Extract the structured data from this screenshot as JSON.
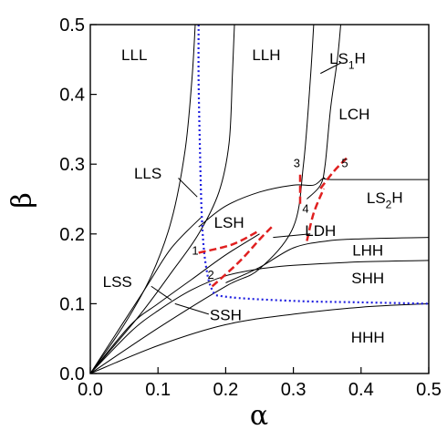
{
  "chart_data": {
    "type": "line",
    "xlabel": "α",
    "ylabel": "β",
    "xlim": [
      0.0,
      0.5
    ],
    "ylim": [
      0.0,
      0.5
    ],
    "x_ticks": [
      0.0,
      0.1,
      0.2,
      0.3,
      0.4,
      0.5
    ],
    "y_ticks": [
      0.0,
      0.1,
      0.2,
      0.3,
      0.4,
      0.5
    ],
    "x_tick_labels": [
      "0.0",
      "0.1",
      "0.2",
      "0.3",
      "0.4",
      "0.5"
    ],
    "y_tick_labels": [
      "0.0",
      "0.1",
      "0.2",
      "0.3",
      "0.4",
      "0.5"
    ],
    "grid": false,
    "boundaries": [
      {
        "id": "b1",
        "points": [
          [
            0.0,
            0.0
          ],
          [
            0.05,
            0.07
          ],
          [
            0.09,
            0.14
          ],
          [
            0.12,
            0.22
          ],
          [
            0.14,
            0.32
          ],
          [
            0.15,
            0.42
          ],
          [
            0.155,
            0.5
          ]
        ]
      },
      {
        "id": "b2",
        "points": [
          [
            0.0,
            0.0
          ],
          [
            0.07,
            0.08
          ],
          [
            0.12,
            0.145
          ],
          [
            0.16,
            0.2
          ],
          [
            0.19,
            0.26
          ],
          [
            0.205,
            0.33
          ],
          [
            0.21,
            0.43
          ],
          [
            0.213,
            0.5
          ]
        ]
      },
      {
        "id": "b3",
        "points": [
          [
            0.0,
            0.0
          ],
          [
            0.1,
            0.065
          ],
          [
            0.2,
            0.125
          ],
          [
            0.25,
            0.15
          ],
          [
            0.3,
            0.21
          ],
          [
            0.315,
            0.3
          ],
          [
            0.325,
            0.42
          ],
          [
            0.33,
            0.5
          ]
        ]
      },
      {
        "id": "b4",
        "points": [
          [
            0.32,
            0.25
          ],
          [
            0.34,
            0.27
          ],
          [
            0.347,
            0.3
          ],
          [
            0.355,
            0.38
          ],
          [
            0.365,
            0.45
          ],
          [
            0.37,
            0.5
          ]
        ]
      },
      {
        "id": "b5",
        "points": [
          [
            0.16,
            0.21
          ],
          [
            0.2,
            0.24
          ],
          [
            0.25,
            0.26
          ],
          [
            0.3,
            0.27
          ],
          [
            0.33,
            0.27
          ],
          [
            0.345,
            0.28
          ],
          [
            0.36,
            0.278
          ],
          [
            0.5,
            0.278
          ]
        ]
      },
      {
        "id": "b6",
        "points": [
          [
            0.2,
            0.13
          ],
          [
            0.25,
            0.152
          ],
          [
            0.3,
            0.18
          ],
          [
            0.35,
            0.19
          ],
          [
            0.4,
            0.193
          ],
          [
            0.5,
            0.195
          ]
        ]
      },
      {
        "id": "b7",
        "points": [
          [
            0.25,
            0.15
          ],
          [
            0.3,
            0.155
          ],
          [
            0.4,
            0.16
          ],
          [
            0.5,
            0.162
          ]
        ]
      },
      {
        "id": "b8",
        "points": [
          [
            0.0,
            0.0
          ],
          [
            0.1,
            0.04
          ],
          [
            0.2,
            0.07
          ],
          [
            0.3,
            0.085
          ],
          [
            0.4,
            0.095
          ],
          [
            0.5,
            0.1
          ]
        ]
      },
      {
        "id": "b9",
        "points": [
          [
            0.0,
            0.0
          ],
          [
            0.06,
            0.06
          ],
          [
            0.1,
            0.09
          ],
          [
            0.15,
            0.12
          ],
          [
            0.2,
            0.14
          ],
          [
            0.25,
            0.15
          ]
        ]
      },
      {
        "id": "b10",
        "points": [
          [
            0.0,
            0.0
          ],
          [
            0.06,
            0.07
          ],
          [
            0.1,
            0.1
          ],
          [
            0.15,
            0.135
          ],
          [
            0.2,
            0.17
          ],
          [
            0.25,
            0.2
          ]
        ]
      },
      {
        "id": "b11",
        "points": [
          [
            0.0,
            0.0
          ],
          [
            0.08,
            0.12
          ],
          [
            0.12,
            0.18
          ],
          [
            0.165,
            0.225
          ]
        ]
      }
    ],
    "dotted_curve": {
      "points": [
        [
          0.16,
          0.5
        ],
        [
          0.16,
          0.42
        ],
        [
          0.162,
          0.32
        ],
        [
          0.165,
          0.22
        ],
        [
          0.17,
          0.16
        ],
        [
          0.18,
          0.12
        ],
        [
          0.2,
          0.11
        ],
        [
          0.3,
          0.104
        ],
        [
          0.4,
          0.102
        ],
        [
          0.5,
          0.1
        ]
      ]
    },
    "dashed_paths": [
      {
        "points": [
          [
            0.16,
            0.173
          ],
          [
            0.21,
            0.185
          ],
          [
            0.25,
            0.205
          ]
        ]
      },
      {
        "points": [
          [
            0.18,
            0.125
          ],
          [
            0.22,
            0.16
          ],
          [
            0.25,
            0.192
          ],
          [
            0.27,
            0.212
          ]
        ]
      },
      {
        "points": [
          [
            0.31,
            0.285
          ],
          [
            0.31,
            0.24
          ]
        ]
      },
      {
        "points": [
          [
            0.32,
            0.19
          ],
          [
            0.33,
            0.23
          ],
          [
            0.345,
            0.265
          ]
        ]
      },
      {
        "points": [
          [
            0.34,
            0.265
          ],
          [
            0.36,
            0.29
          ],
          [
            0.38,
            0.31
          ]
        ]
      }
    ],
    "regions": [
      {
        "label": "LLL",
        "x": 0.065,
        "y": 0.455
      },
      {
        "label": "LLH",
        "x": 0.26,
        "y": 0.455
      },
      {
        "label": "LS",
        "sub": "1",
        "tail": "H",
        "x": 0.38,
        "y": 0.45
      },
      {
        "label": "LCH",
        "x": 0.39,
        "y": 0.37
      },
      {
        "label": "LLS",
        "x": 0.085,
        "y": 0.285
      },
      {
        "label": "LSH",
        "x": 0.205,
        "y": 0.215
      },
      {
        "label": "LDH",
        "x": 0.34,
        "y": 0.203
      },
      {
        "label": "LS",
        "sub": "2",
        "tail": "H",
        "x": 0.435,
        "y": 0.25
      },
      {
        "label": "LHH",
        "x": 0.41,
        "y": 0.175
      },
      {
        "label": "SHH",
        "x": 0.41,
        "y": 0.135
      },
      {
        "label": "LSS",
        "x": 0.04,
        "y": 0.13
      },
      {
        "label": "SSH",
        "x": 0.2,
        "y": 0.082
      },
      {
        "label": "HHH",
        "x": 0.41,
        "y": 0.05
      }
    ],
    "pointers": [
      {
        "from": [
          0.37,
          0.445
        ],
        "to": [
          0.34,
          0.43
        ]
      },
      {
        "from": [
          0.13,
          0.28
        ],
        "to": [
          0.158,
          0.253
        ]
      },
      {
        "from": [
          0.325,
          0.2
        ],
        "to": [
          0.27,
          0.195
        ]
      },
      {
        "from": [
          0.09,
          0.125
        ],
        "to": [
          0.12,
          0.105
        ]
      },
      {
        "from": [
          0.175,
          0.085
        ],
        "to": [
          0.125,
          0.1
        ]
      }
    ],
    "point_labels": [
      {
        "label": "1",
        "x": 0.155,
        "y": 0.175
      },
      {
        "label": "2",
        "x": 0.178,
        "y": 0.14
      },
      {
        "label": "3",
        "x": 0.305,
        "y": 0.3
      },
      {
        "label": "4",
        "x": 0.318,
        "y": 0.235
      },
      {
        "label": "5",
        "x": 0.376,
        "y": 0.3
      }
    ]
  }
}
